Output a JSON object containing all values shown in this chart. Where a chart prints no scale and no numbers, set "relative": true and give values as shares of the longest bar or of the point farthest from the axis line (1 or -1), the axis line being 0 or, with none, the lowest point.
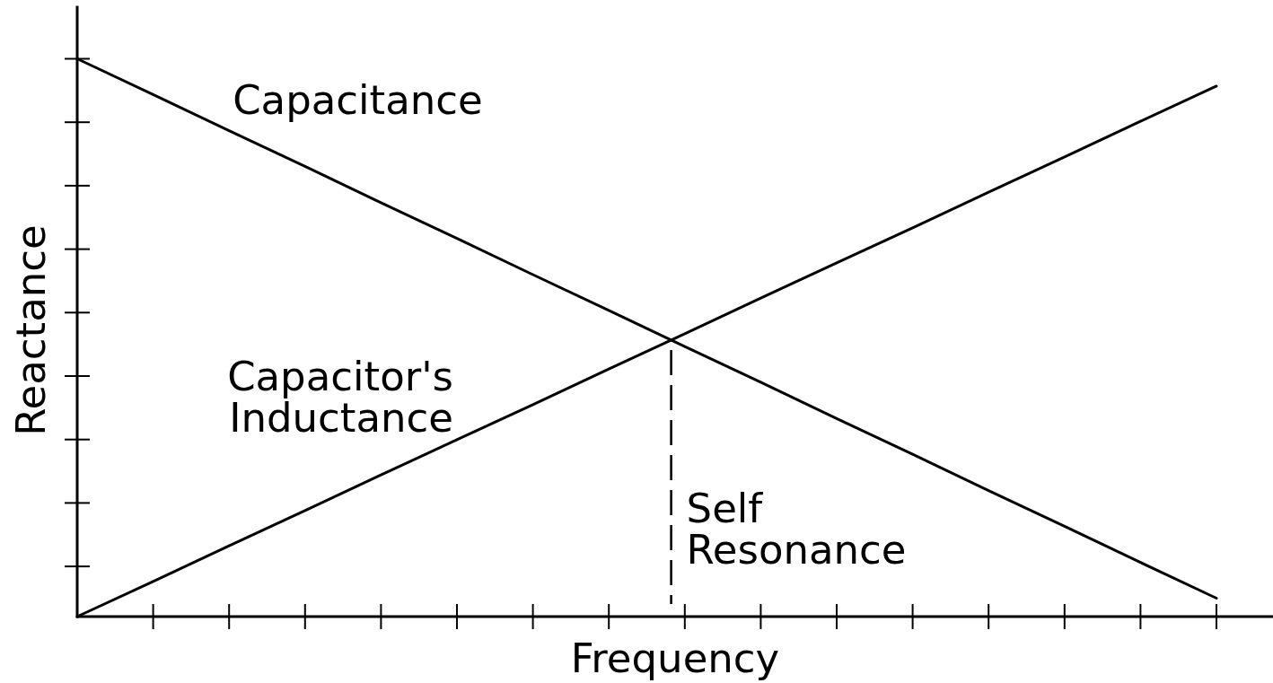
{
  "chart_data": {
    "type": "line",
    "xlabel": "Frequency",
    "ylabel": "Reactance",
    "relative": true,
    "categories": [
      null,
      null,
      null,
      null,
      null,
      null,
      null,
      null,
      null,
      null,
      null,
      null,
      null,
      null,
      null,
      null
    ],
    "series": [
      {
        "name": "Capacitance",
        "color": "#000000",
        "values": [
          1,
          0.936,
          0.871,
          0.807,
          0.742,
          0.678,
          0.613,
          0.549,
          0.484,
          0.42,
          0.355,
          0.291,
          0.226,
          0.162,
          0.097,
          0.033
        ]
      },
      {
        "name": "Capacitor's\nInductance",
        "color": "#000000",
        "values": [
          0,
          0.063,
          0.127,
          0.19,
          0.254,
          0.317,
          0.38,
          0.444,
          0.507,
          0.571,
          0.634,
          0.697,
          0.761,
          0.824,
          0.888,
          0.951
        ]
      }
    ],
    "annotations": [
      "Self\nResonance"
    ]
  }
}
